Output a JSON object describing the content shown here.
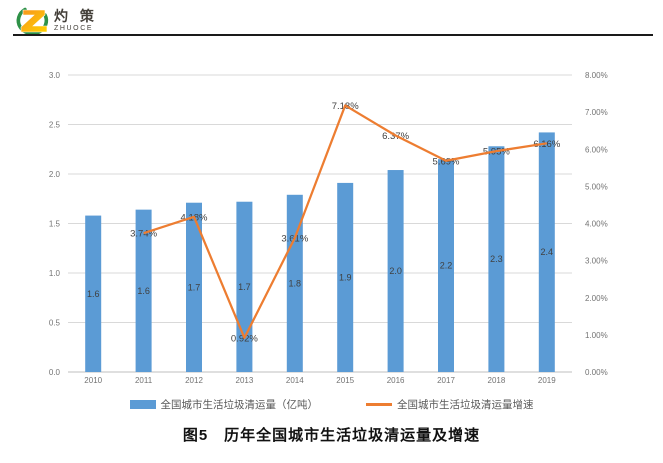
{
  "logo": {
    "cn": "灼 策",
    "en": "ZHUOCE"
  },
  "caption": "图5　历年全国城市生活垃圾清运量及增速",
  "chart_data": {
    "type": "bar+line combo",
    "categories": [
      "2010",
      "2011",
      "2012",
      "2013",
      "2014",
      "2015",
      "2016",
      "2017",
      "2018",
      "2019"
    ],
    "series": [
      {
        "name": "全国城市生活垃圾清运量（亿吨）",
        "type": "bar",
        "axis": "left",
        "color": "#5B9BD5",
        "values": [
          1.58,
          1.64,
          1.71,
          1.72,
          1.79,
          1.91,
          2.04,
          2.15,
          2.28,
          2.42
        ],
        "labels": [
          "1.6",
          "1.6",
          "1.7",
          "1.7",
          "1.8",
          "1.9",
          "2.0",
          "2.2",
          "2.3",
          "2.4"
        ]
      },
      {
        "name": "全国城市生活垃圾清运量增速",
        "type": "line",
        "axis": "right",
        "color": "#ED7D31",
        "values": [
          null,
          3.74,
          4.18,
          0.92,
          3.61,
          7.18,
          6.37,
          5.69,
          5.95,
          6.16
        ],
        "labels": [
          "",
          "3.74%",
          "4.18%",
          "0.92%",
          "3.61%",
          "7.18%",
          "6.37%",
          "5.69%",
          "5.95%",
          "6.16%"
        ]
      }
    ],
    "left_axis": {
      "min": 0,
      "max": 3,
      "step": 0.5,
      "tick_labels": [
        "0.0",
        "0.5",
        "1.0",
        "1.5",
        "2.0",
        "2.5",
        "3.0"
      ]
    },
    "right_axis": {
      "min": 0,
      "max": 8,
      "step": 1,
      "tick_labels": [
        "0.00%",
        "1.00%",
        "2.00%",
        "3.00%",
        "4.00%",
        "5.00%",
        "6.00%",
        "7.00%",
        "8.00%"
      ]
    },
    "grid": true,
    "legend_position": "bottom",
    "title": "图5　历年全国城市生活垃圾清运量及增速"
  },
  "colors": {
    "grid": "#D9D9D9",
    "axis_line": "#BFBFBF",
    "axis_text": "#737373",
    "data_label": "#404040",
    "logo_green": "#2E9147",
    "logo_orange_1": "#F7941D",
    "logo_orange_2": "#FFD200",
    "header_rule": "#1A1A1A"
  }
}
